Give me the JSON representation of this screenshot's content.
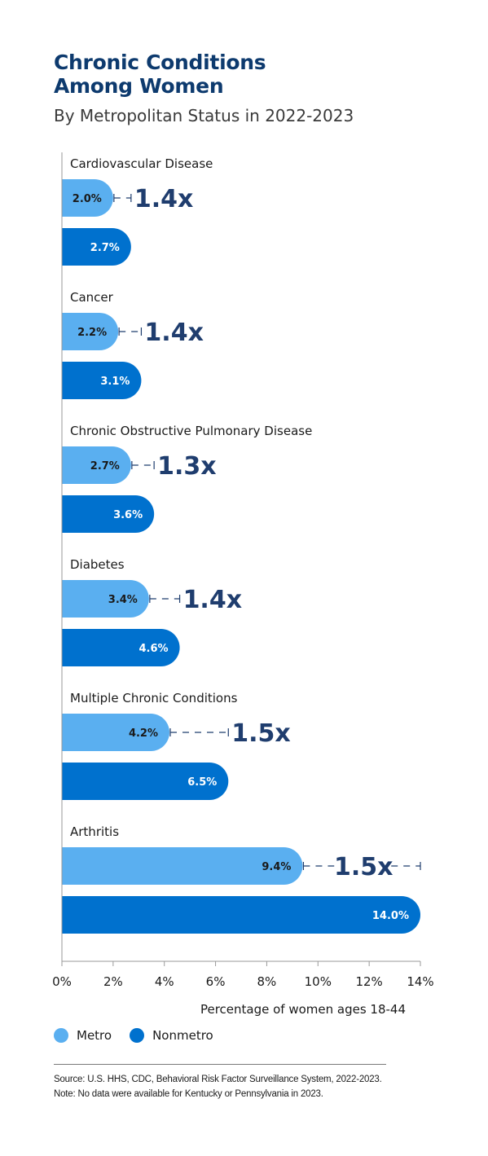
{
  "title_lines": [
    "Chronic Conditions",
    "Among Women"
  ],
  "subtitle": "By Metropolitan Status in 2022-2023",
  "chart_data": {
    "type": "bar",
    "orientation": "horizontal",
    "categories": [
      "Cardiovascular Disease",
      "Cancer",
      "Chronic Obstructive Pulmonary Disease",
      "Diabetes",
      "Multiple Chronic Conditions",
      "Arthritis"
    ],
    "series": [
      {
        "name": "Metro",
        "values": [
          2.0,
          2.2,
          2.7,
          3.4,
          4.2,
          9.4
        ],
        "labels": [
          "2.0%",
          "2.2%",
          "2.7%",
          "3.4%",
          "4.2%",
          "9.4%"
        ],
        "color": "#5aaff0"
      },
      {
        "name": "Nonmetro",
        "values": [
          2.7,
          3.1,
          3.6,
          4.6,
          6.5,
          14.0
        ],
        "labels": [
          "2.7%",
          "3.1%",
          "3.6%",
          "4.6%",
          "6.5%",
          "14.0%"
        ],
        "color": "#0071ce"
      }
    ],
    "ratios": [
      "1.4x",
      "1.4x",
      "1.3x",
      "1.4x",
      "1.5x",
      "1.5x"
    ],
    "ratio_color": "#1f3d6e",
    "xlabel": "Percentage of women ages 18-44",
    "xlim": [
      0,
      14
    ],
    "x_ticks": [
      0,
      2,
      4,
      6,
      8,
      10,
      12,
      14
    ],
    "x_tick_labels": [
      "0%",
      "2%",
      "4%",
      "6%",
      "8%",
      "10%",
      "12%",
      "14%"
    ],
    "legend_position": "bottom-left",
    "grid": false
  },
  "legend": [
    {
      "label": "Metro",
      "color": "#5aaff0"
    },
    {
      "label": "Nonmetro",
      "color": "#0071ce"
    }
  ],
  "notes": [
    "Source: U.S. HHS, CDC, Behavioral Risk Factor Surveillance System, 2022-2023.",
    "Note: No data were available for Kentucky or Pennsylvania in 2023."
  ]
}
